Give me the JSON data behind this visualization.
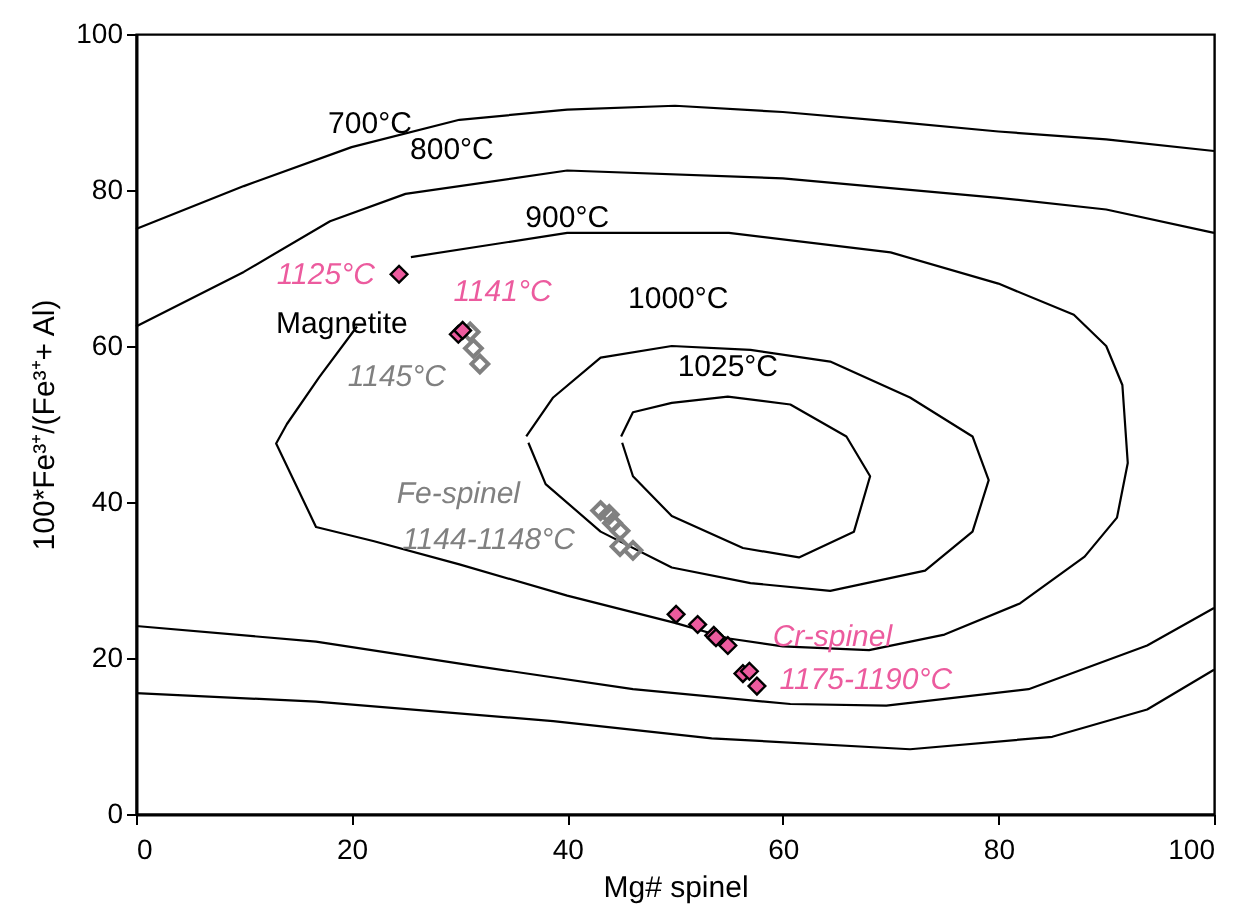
{
  "chart_data": {
    "type": "line",
    "xlabel": "Mg# spinel",
    "ylabel": "100*Fe³⁺/(Fe³⁺+ Al)",
    "xlim": [
      0,
      100
    ],
    "ylim": [
      0,
      100
    ],
    "xticks": [
      0,
      20,
      40,
      60,
      80,
      100
    ],
    "yticks": [
      0,
      20,
      40,
      60,
      80,
      100
    ],
    "grid": false,
    "line_style": "solid",
    "series": [
      {
        "color": "#000000",
        "x": [
          0,
          10,
          20,
          30,
          40,
          50,
          60,
          70,
          80,
          90,
          100
        ],
        "values": [
          75,
          80.5,
          85.5,
          89,
          90.3,
          90.8,
          90,
          88.8,
          87.5,
          86.5,
          85
        ]
      },
      {
        "color": "#000000",
        "x": [
          0,
          10,
          18,
          25,
          40,
          60,
          80,
          90,
          100
        ],
        "values": [
          62.5,
          69.5,
          76,
          79.5,
          82.5,
          81.5,
          79,
          77.5,
          74.5
        ]
      },
      {
        "color": "#000000",
        "x": [
          25.5,
          40,
          55,
          70,
          80,
          87,
          90,
          91.5,
          92,
          91,
          88,
          82,
          75,
          68,
          60,
          55,
          50,
          40,
          30,
          22,
          16.7,
          13,
          14,
          17,
          20.5
        ],
        "values": [
          71.4,
          74.5,
          74.5,
          72,
          68,
          64,
          60,
          55,
          45,
          38,
          33,
          27,
          23,
          21,
          21.5,
          22.5,
          24.5,
          28,
          32,
          35,
          36.8,
          47.5,
          50,
          56,
          62.5
        ]
      },
      {
        "color": "#000000",
        "x": [
          36.2,
          38.7,
          43.1,
          49.7,
          57,
          64.4,
          71.8,
          77.6,
          79.1,
          77.6,
          73.2,
          64.4,
          57,
          49.7,
          43.1,
          38,
          36.4
        ],
        "values": [
          48.4,
          53.4,
          58.5,
          60,
          59.5,
          58,
          53.4,
          48.4,
          42.8,
          36.2,
          31.2,
          28.6,
          29.6,
          31.6,
          36.2,
          42.3,
          47.6
        ]
      },
      {
        "color": "#000000",
        "x": [
          45,
          46.1,
          49.7,
          54.9,
          60.7,
          65.9,
          68.1,
          66.6,
          61.5,
          56.3,
          49.7,
          46.1,
          45.1
        ],
        "values": [
          48.4,
          51.5,
          52.7,
          53.5,
          52.5,
          48.4,
          43.3,
          36.2,
          32.9,
          34.1,
          38.2,
          43.3,
          47.6
        ]
      },
      {
        "color": "#000000",
        "x": [
          0,
          16.7,
          31.4,
          46.1,
          60.7,
          69.6,
          82.8,
          93.8,
          100
        ],
        "values": [
          24.1,
          22.1,
          19,
          16,
          14.1,
          13.9,
          16,
          21.6,
          26.4
        ]
      },
      {
        "color": "#000000",
        "x": [
          0,
          16.7,
          38.7,
          53.4,
          71.8,
          85,
          93.8,
          100
        ],
        "values": [
          15.5,
          14.4,
          11.9,
          9.7,
          8.3,
          9.9,
          13.4,
          18.5
        ]
      },
      {
        "type": "scatter",
        "marker": "diamond",
        "color": "#808080",
        "x": [
          31,
          31.3,
          31.9,
          43.1,
          43.9,
          44.2,
          44.9,
          44.9,
          46.1
        ],
        "values": [
          61.8,
          59.7,
          57.7,
          38.9,
          38.4,
          37.3,
          36.3,
          34.3,
          33.8
        ]
      },
      {
        "type": "scatter",
        "marker": "diamond",
        "color": "#ec5b9e",
        "x": [
          24.4,
          29.9,
          30.3,
          50.1,
          52.1,
          53.6,
          53.8,
          54.9,
          56.3,
          56.9,
          57.6
        ],
        "values": [
          69.2,
          61.5,
          62,
          25.6,
          24.3,
          22.9,
          22.6,
          21.6,
          18,
          18.3,
          16.4
        ]
      }
    ],
    "annotations": [
      "700°C",
      "800°C",
      "900°C",
      "1000°C",
      "1025°C",
      "Magnetite",
      "1125°C",
      "1141°C",
      "1145°C",
      "Fe-spinel",
      "1144-1148°C",
      "Cr-spinel",
      "1175-1190°C"
    ]
  }
}
